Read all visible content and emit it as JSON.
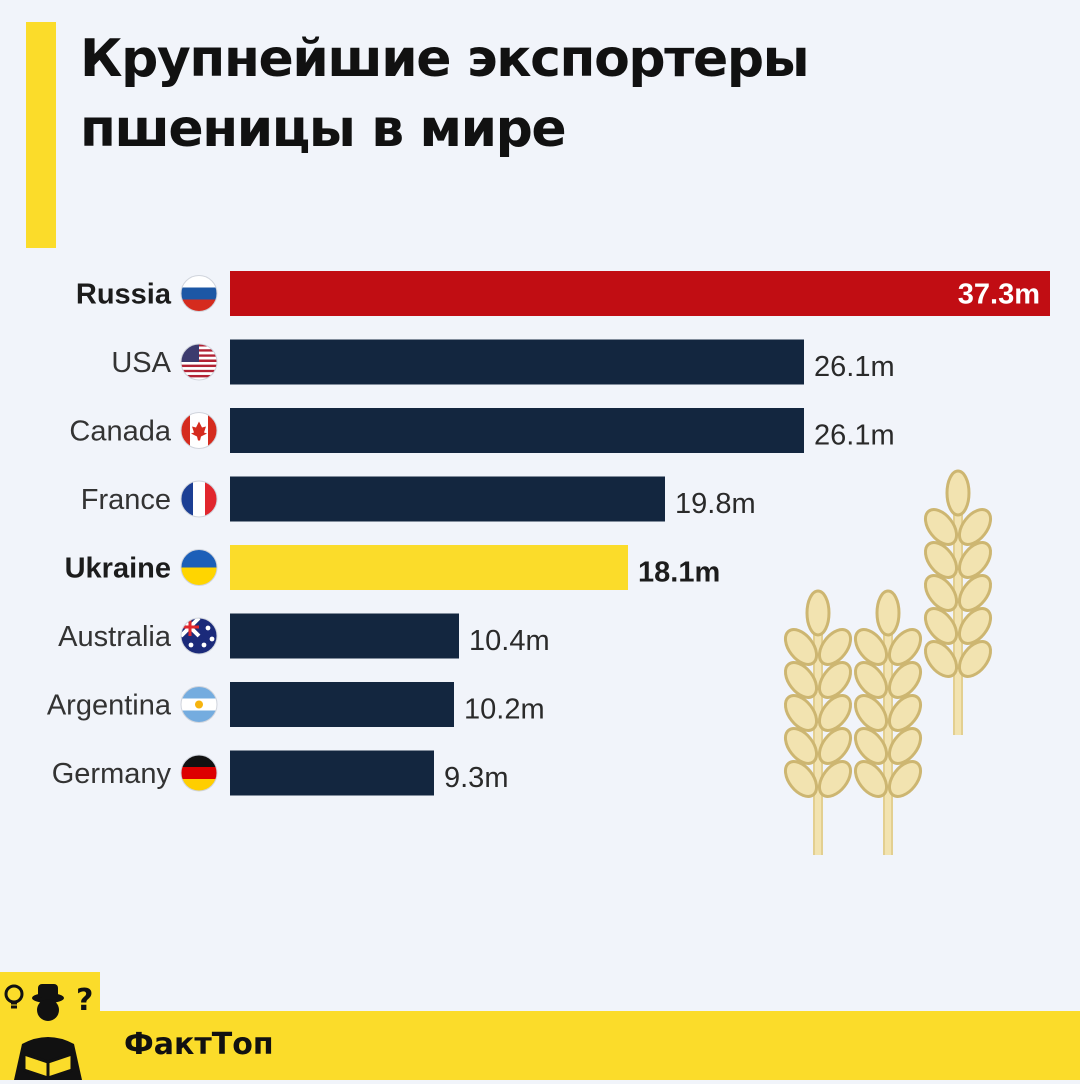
{
  "title_lines": [
    "Крупнейшие экспортеры",
    "пшеницы в мире"
  ],
  "brand": {
    "name": "ФактТоп"
  },
  "chart_data": {
    "type": "bar",
    "orientation": "horizontal",
    "unit_suffix": "m",
    "categories": [
      "Russia",
      "USA",
      "Canada",
      "France",
      "Ukraine",
      "Australia",
      "Argentina",
      "Germany"
    ],
    "values": [
      37.3,
      26.1,
      26.1,
      19.8,
      18.1,
      10.4,
      10.2,
      9.3
    ],
    "value_labels": [
      "37.3m",
      "26.1m",
      "26.1m",
      "19.8m",
      "18.1m",
      "10.4m",
      "10.2m",
      "9.3m"
    ],
    "highlight": [
      "Russia",
      "Ukraine"
    ],
    "bar_colors": [
      "#c10d13",
      "#13263f",
      "#13263f",
      "#13263f",
      "#fbdc2a",
      "#13263f",
      "#13263f",
      "#13263f"
    ],
    "flags": [
      "russia-flag-icon",
      "usa-flag-icon",
      "canada-flag-icon",
      "france-flag-icon",
      "ukraine-flag-icon",
      "australia-flag-icon",
      "argentina-flag-icon",
      "germany-flag-icon"
    ],
    "xlim": [
      0,
      37.3
    ],
    "grid": false,
    "legend": "none"
  },
  "colors": {
    "accent": "#fbdc2a",
    "highlight_red": "#c10d13",
    "bar_default": "#13263f",
    "background": "#f1f4fa",
    "wheat": "#f2e3b0"
  }
}
